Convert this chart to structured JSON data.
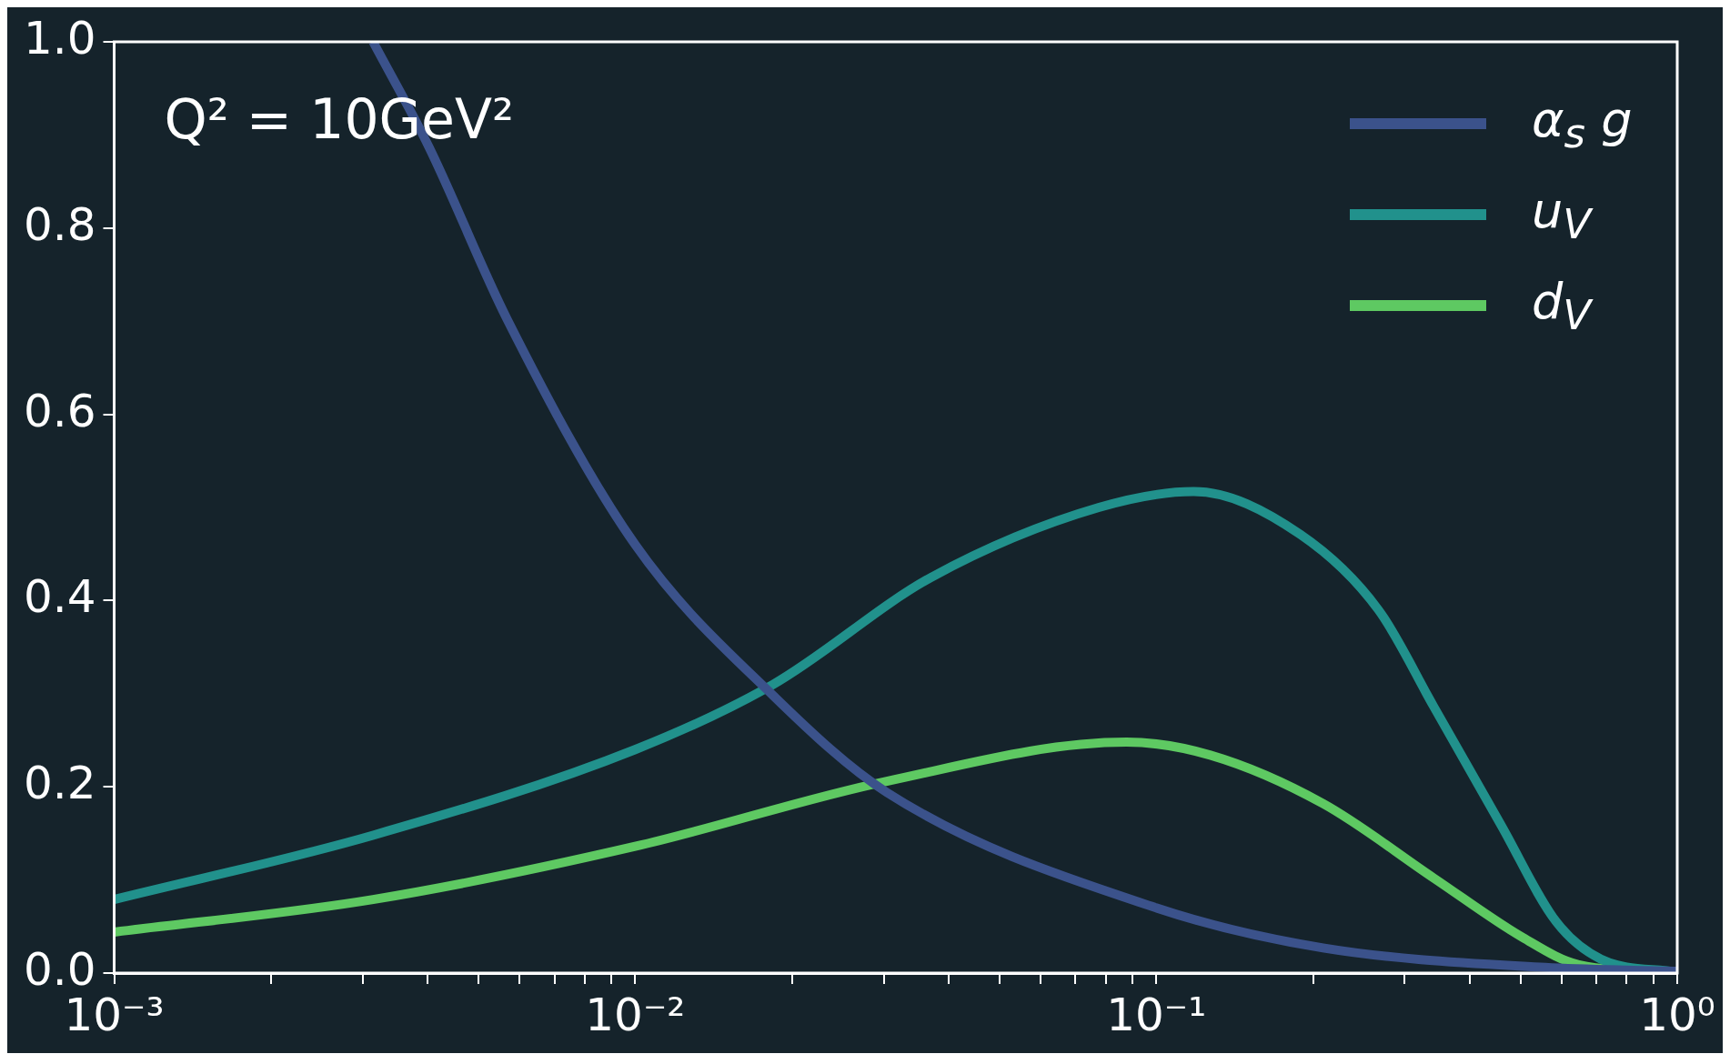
{
  "chart_data": {
    "type": "line",
    "annotations": [
      "Q² = 10GeV²"
    ],
    "log": "x",
    "xlim": [
      0.001,
      1
    ],
    "ylim": [
      0,
      1
    ],
    "xticks": [
      {
        "value": 0.001,
        "label": "10⁻³"
      },
      {
        "value": 0.002,
        "label": null
      },
      {
        "value": 0.003,
        "label": null
      },
      {
        "value": 0.004,
        "label": null
      },
      {
        "value": 0.005,
        "label": null
      },
      {
        "value": 0.006,
        "label": null
      },
      {
        "value": 0.007,
        "label": null
      },
      {
        "value": 0.008,
        "label": null
      },
      {
        "value": 0.009,
        "label": null
      },
      {
        "value": 0.01,
        "label": "10⁻²"
      },
      {
        "value": 0.02,
        "label": null
      },
      {
        "value": 0.03,
        "label": null
      },
      {
        "value": 0.04,
        "label": null
      },
      {
        "value": 0.05,
        "label": null
      },
      {
        "value": 0.06,
        "label": null
      },
      {
        "value": 0.07,
        "label": null
      },
      {
        "value": 0.08,
        "label": null
      },
      {
        "value": 0.09,
        "label": null
      },
      {
        "value": 0.1,
        "label": "10⁻¹"
      },
      {
        "value": 0.2,
        "label": null
      },
      {
        "value": 0.3,
        "label": null
      },
      {
        "value": 0.4,
        "label": null
      },
      {
        "value": 0.5,
        "label": null
      },
      {
        "value": 0.6,
        "label": null
      },
      {
        "value": 0.7,
        "label": null
      },
      {
        "value": 0.8,
        "label": null
      },
      {
        "value": 0.9,
        "label": null
      },
      {
        "value": 1,
        "label": "10⁰"
      }
    ],
    "yticks": [
      {
        "value": 0,
        "label": "0.0"
      },
      {
        "value": 0.2,
        "label": "0.2"
      },
      {
        "value": 0.4,
        "label": "0.4"
      },
      {
        "value": 0.6,
        "label": "0.6"
      },
      {
        "value": 0.8,
        "label": "0.8"
      },
      {
        "value": 1,
        "label": "1.0"
      }
    ],
    "grid": false,
    "legend": "top right",
    "marker": "none",
    "line_style": "solid",
    "series": [
      {
        "name": "α$_{s}$ g",
        "color": "#3b528b",
        "x": [
          0.00314,
          0.00402,
          0.00568,
          0.01,
          0.0184,
          0.0304,
          0.1,
          0.209,
          0.558,
          1
        ],
        "values": [
          1.0,
          0.887,
          0.702,
          0.46,
          0.298,
          0.194,
          0.07,
          0.027,
          0.006,
          0.002
        ]
      },
      {
        "name": "u$_{V}$",
        "color": "#21918c",
        "x": [
          0.001,
          0.00314,
          0.01,
          0.0184,
          0.037,
          0.0776,
          0.118,
          0.189,
          0.267,
          0.341,
          0.459,
          0.586,
          0.714,
          1
        ],
        "values": [
          0.079,
          0.148,
          0.24,
          0.31,
          0.425,
          0.5,
          0.517,
          0.471,
          0.39,
          0.286,
          0.159,
          0.055,
          0.015,
          0.001
        ]
      },
      {
        "name": "d$_{V}$",
        "color": "#5ec962",
        "x": [
          0.001,
          0.00314,
          0.01,
          0.0304,
          0.0877,
          0.127,
          0.209,
          0.341,
          0.506,
          0.647,
          1
        ],
        "values": [
          0.044,
          0.079,
          0.136,
          0.206,
          0.248,
          0.234,
          0.182,
          0.102,
          0.038,
          0.009,
          0.001
        ]
      }
    ]
  }
}
